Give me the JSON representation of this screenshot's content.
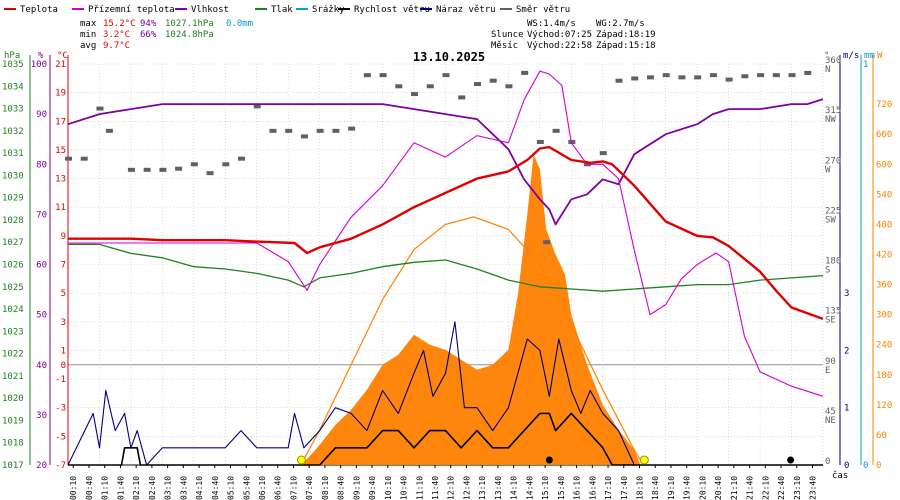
{
  "legend": [
    {
      "label": "Teplota",
      "color": "#e00000"
    },
    {
      "label": "Přízemní teplota",
      "color": "#d000d0"
    },
    {
      "label": "Vlhkost",
      "color": "#8000a0"
    },
    {
      "label": "Tlak",
      "color": "#208020"
    },
    {
      "label": "Srážky",
      "color": "#00a0d0"
    },
    {
      "label": "Rychlost větru",
      "color": "#000000"
    },
    {
      "label": "Náraz větru",
      "color": "#000080"
    },
    {
      "label": "Směr větru",
      "color": "#606060"
    }
  ],
  "stats": {
    "max": {
      "label": "max",
      "temp": "15.2°C",
      "hum": "94%",
      "press": "1027.1hPa",
      "rain": "0.0mm"
    },
    "min": {
      "label": "min",
      "temp": "3.2°C",
      "hum": "66%",
      "press": "1024.8hPa"
    },
    "avg": {
      "label": "avg",
      "temp": "9.7°C"
    }
  },
  "wind_info": {
    "ws": "WS:1.4m/s",
    "wg": "WG:2.7m/s"
  },
  "sun_info": {
    "label": "Slunce",
    "rise": "Východ:07:25",
    "set": "Západ:18:19"
  },
  "moon_info": {
    "label": "Měsíc",
    "rise": "Východ:22:58",
    "set": "Západ:15:18"
  },
  "date": "13.10.2025",
  "colors": {
    "temp": "#e00000",
    "ground": "#d000d0",
    "hum": "#8000a0",
    "press": "#208020",
    "rain": "#00a0d0",
    "speed": "#000000",
    "gust": "#000080",
    "dir": "#606060",
    "solar": "#ff8000",
    "grid": "#c8c8c8"
  },
  "axis_units": {
    "hpa": "hPa",
    "pct": "%",
    "degc": "°C",
    "deg": "°",
    "ms": "m/s",
    "mm": "mm",
    "w": "W"
  },
  "axis_xlabel": "čas",
  "chart_data": {
    "type": "line",
    "title": "13.10.2025",
    "x_unit": "hour of day",
    "xlim": [
      0,
      24
    ],
    "x_ticks": [
      "00:10",
      "00:40",
      "01:10",
      "01:40",
      "02:10",
      "02:40",
      "03:10",
      "03:40",
      "04:10",
      "04:40",
      "05:10",
      "05:40",
      "06:10",
      "06:40",
      "07:10",
      "07:40",
      "08:10",
      "08:40",
      "09:10",
      "09:40",
      "10:10",
      "10:40",
      "11:10",
      "11:40",
      "12:10",
      "12:40",
      "13:10",
      "13:40",
      "14:10",
      "14:40",
      "15:10",
      "15:40",
      "16:10",
      "16:40",
      "17:10",
      "17:40",
      "18:10",
      "18:40",
      "19:10",
      "19:40",
      "20:10",
      "20:40",
      "21:10",
      "21:40",
      "22:10",
      "22:40",
      "23:10",
      "23:40"
    ],
    "axes": {
      "pressure": {
        "label": "hPa",
        "ylim": [
          1017,
          1035
        ],
        "ticks": [
          "1035",
          "1034",
          "1033",
          "1032",
          "1031",
          "1030",
          "1029",
          "1028",
          "1027",
          "1026",
          "1025",
          "1024",
          "1023",
          "1022",
          "1021",
          "1020",
          "1019",
          "1018",
          "1017"
        ]
      },
      "humidity": {
        "label": "%",
        "ylim": [
          20,
          100
        ],
        "ticks": [
          "100",
          "90",
          "80",
          "70",
          "60",
          "50",
          "40",
          "30",
          "20"
        ]
      },
      "temperature": {
        "label": "°C",
        "ylim": [
          -7,
          21
        ],
        "ticks": [
          "21",
          "19",
          "17",
          "15",
          "13",
          "11",
          "9",
          "7",
          "5",
          "3",
          "1",
          "-1",
          "-3",
          "-5",
          "-7"
        ]
      },
      "wind_direction": {
        "label": "°",
        "ylim": [
          0,
          360
        ],
        "ticks": [
          {
            "v": 0,
            "t": "0"
          },
          {
            "v": 45,
            "t": "45"
          },
          {
            "v": 90,
            "t": "90"
          },
          {
            "v": 135,
            "t": "135"
          },
          {
            "v": 180,
            "t": "180"
          },
          {
            "v": 225,
            "t": "225"
          },
          {
            "v": 270,
            "t": "270"
          },
          {
            "v": 315,
            "t": "315"
          },
          {
            "v": 360,
            "t": "360"
          }
        ],
        "compass": [
          {
            "v": 45,
            "t": "NE"
          },
          {
            "v": 90,
            "t": "E"
          },
          {
            "v": 135,
            "t": "SE"
          },
          {
            "v": 180,
            "t": "S"
          },
          {
            "v": 225,
            "t": "SW"
          },
          {
            "v": 270,
            "t": "W"
          },
          {
            "v": 315,
            "t": "NW"
          },
          {
            "v": 360,
            "t": "N"
          }
        ]
      },
      "wind_speed": {
        "label": "m/s",
        "ylim": [
          0,
          7
        ],
        "ticks": [
          "0",
          "1",
          "2",
          "3"
        ]
      },
      "rain": {
        "label": "mm",
        "ylim": [
          0,
          1
        ],
        "ticks": [
          "0",
          "1"
        ]
      },
      "solar": {
        "label": "W",
        "ylim": [
          0,
          800
        ],
        "ticks": [
          "0",
          "60",
          "120",
          "180",
          "240",
          "300",
          "360",
          "420",
          "480",
          "540",
          "600",
          "660",
          "720"
        ]
      }
    },
    "series": [
      {
        "name": "Teplota",
        "axis": "temperature",
        "x": [
          0,
          1,
          2,
          3,
          4,
          5,
          6,
          7.2,
          7.6,
          8,
          9,
          10,
          11,
          12,
          13,
          14,
          14.6,
          15,
          15.3,
          16,
          16.6,
          17,
          17.3,
          18,
          19,
          20,
          20.5,
          21,
          22,
          22.5,
          23,
          24
        ],
        "values": [
          8.8,
          8.8,
          8.8,
          8.7,
          8.7,
          8.7,
          8.6,
          8.5,
          7.8,
          8.2,
          8.8,
          9.8,
          11.0,
          12.0,
          13.0,
          13.5,
          14.3,
          15.1,
          15.2,
          14.3,
          14.1,
          14.2,
          14.0,
          12.5,
          10.0,
          9.0,
          8.9,
          8.3,
          6.5,
          5.2,
          4.0,
          3.2
        ]
      },
      {
        "name": "Přízemní teplota",
        "axis": "temperature",
        "x": [
          0,
          6,
          7,
          7.6,
          8,
          9,
          10,
          11,
          12,
          13,
          14,
          14.5,
          15,
          15.3,
          15.7,
          16,
          16.5,
          17,
          17.5,
          18,
          18.5,
          19,
          19.5,
          20,
          20.6,
          21,
          21.5,
          22,
          23,
          24
        ],
        "values": [
          8.5,
          8.5,
          7.2,
          5.2,
          7.0,
          10.3,
          12.5,
          15.5,
          14.5,
          16.0,
          15.5,
          18.5,
          20.5,
          20.3,
          19.5,
          15.5,
          14.0,
          14.0,
          13.0,
          8.0,
          3.5,
          4.2,
          6.0,
          7.0,
          7.8,
          7.2,
          2.0,
          -0.5,
          -1.5,
          -2.2
        ]
      },
      {
        "name": "Vlhkost",
        "axis": "humidity",
        "x": [
          0,
          1,
          3,
          6,
          7,
          8,
          10,
          12,
          13,
          14,
          14.5,
          15,
          15.3,
          15.5,
          16,
          16.5,
          17,
          17.5,
          18,
          19,
          20,
          20.5,
          21,
          22,
          23,
          23.5,
          24
        ],
        "values": [
          88,
          90,
          92,
          92,
          92,
          92,
          92,
          90,
          89,
          83,
          77,
          73,
          71,
          68,
          73,
          74,
          77,
          76,
          82,
          86,
          88,
          90,
          91,
          91,
          92,
          92,
          93
        ]
      },
      {
        "name": "Tlak",
        "axis": "pressure",
        "x": [
          0,
          1,
          2,
          3,
          4,
          5,
          6,
          7,
          7.5,
          8,
          9,
          10,
          11,
          12,
          13,
          14,
          15,
          16,
          17,
          18,
          19,
          20,
          21,
          22,
          23,
          24
        ],
        "values": [
          1026.9,
          1026.9,
          1026.5,
          1026.3,
          1025.9,
          1025.8,
          1025.6,
          1025.3,
          1025.0,
          1025.4,
          1025.6,
          1025.9,
          1026.1,
          1026.2,
          1025.8,
          1025.3,
          1025.0,
          1024.9,
          1024.8,
          1024.9,
          1025.0,
          1025.1,
          1025.1,
          1025.3,
          1025.4,
          1025.5
        ]
      },
      {
        "name": "Rychlost větru",
        "axis": "wind_speed",
        "x": [
          0,
          1.7,
          1.8,
          2.2,
          2.3,
          8,
          8.5,
          9,
          9.5,
          10,
          10.5,
          11,
          11.5,
          12,
          12.5,
          13,
          13.5,
          14,
          14.5,
          15,
          15.3,
          15.5,
          16,
          16.5,
          17,
          17.3,
          24
        ],
        "values": [
          0,
          0,
          0.3,
          0.3,
          0,
          0,
          0.3,
          0.3,
          0.3,
          0.6,
          0.6,
          0.3,
          0.6,
          0.6,
          0.3,
          0.6,
          0.3,
          0.3,
          0.6,
          0.9,
          0.9,
          0.6,
          0.9,
          0.6,
          0.3,
          0,
          0
        ]
      },
      {
        "name": "Náraz větru",
        "axis": "wind_speed",
        "x": [
          0,
          0.8,
          1,
          1.2,
          1.5,
          1.8,
          2,
          2.2,
          2.5,
          3,
          4,
          5,
          5.5,
          6,
          6.5,
          7,
          7.2,
          7.5,
          8,
          8.5,
          9,
          9.5,
          10,
          10.5,
          11,
          11.3,
          11.6,
          12,
          12.3,
          12.6,
          13,
          13.5,
          14,
          14.3,
          14.6,
          15,
          15.3,
          15.6,
          16,
          16.3,
          16.6,
          17,
          17.5,
          18,
          24
        ],
        "values": [
          0,
          0.9,
          0.3,
          1.3,
          0.6,
          0.9,
          0.3,
          0.6,
          0,
          0.3,
          0.3,
          0.3,
          0.6,
          0.3,
          0.3,
          0.3,
          0.9,
          0.3,
          0.6,
          1.0,
          0.9,
          0.6,
          1.3,
          0.9,
          1.6,
          2.0,
          1.2,
          1.6,
          2.5,
          1.0,
          1.0,
          0.6,
          1.0,
          1.6,
          2.2,
          2.0,
          1.2,
          2.2,
          1.3,
          0.9,
          1.3,
          0.9,
          0.6,
          0,
          0
        ]
      },
      {
        "name": "Solární záření",
        "axis": "solar",
        "x": [
          7.5,
          8,
          8.5,
          9,
          9.5,
          10,
          10.5,
          11,
          11.5,
          12,
          12.5,
          13,
          13.5,
          14,
          14.3,
          14.6,
          14.8,
          15,
          15.2,
          15.5,
          15.8,
          16,
          16.5,
          17,
          17.5,
          18,
          18.2
        ],
        "values": [
          5,
          40,
          80,
          110,
          150,
          200,
          220,
          260,
          240,
          230,
          210,
          190,
          200,
          230,
          340,
          500,
          620,
          590,
          470,
          420,
          380,
          300,
          200,
          120,
          70,
          30,
          0
        ]
      },
      {
        "name": "Sluneční výška",
        "axis": "solar",
        "x": [
          7.4,
          8,
          9,
          10,
          11,
          12,
          12.9,
          14,
          15,
          16,
          17,
          18,
          18.3
        ],
        "values": [
          0,
          70,
          200,
          330,
          430,
          480,
          495,
          470,
          400,
          280,
          150,
          30,
          0
        ]
      },
      {
        "name": "Směr větru",
        "axis": "wind_direction",
        "type": "scatter",
        "x": [
          0,
          0.5,
          1,
          1.3,
          2,
          2.5,
          3,
          3.5,
          4,
          4.5,
          5,
          5.5,
          6,
          6.5,
          7,
          7.5,
          8,
          8.5,
          9,
          9.5,
          10,
          10.5,
          11,
          11.5,
          12,
          12.5,
          13,
          13.5,
          14,
          14.5,
          15,
          15.2,
          15.5,
          16,
          16.5,
          17,
          17.5,
          18,
          18.5,
          19,
          19.5,
          20,
          20.5,
          21,
          21.5,
          22,
          22.5,
          23,
          23.5
        ],
        "values": [
          275,
          275,
          320,
          300,
          265,
          265,
          265,
          266,
          270,
          262,
          270,
          275,
          322,
          300,
          300,
          295,
          300,
          300,
          302,
          350,
          350,
          340,
          333,
          340,
          350,
          330,
          342,
          345,
          340,
          352,
          290,
          200,
          300,
          290,
          270,
          280,
          345,
          347,
          348,
          350,
          348,
          348,
          350,
          346,
          349,
          350,
          350,
          350,
          352
        ]
      }
    ],
    "markers": [
      {
        "name": "sunrise",
        "x": 7.42,
        "label": "Východ:07:25"
      },
      {
        "name": "sunset",
        "x": 18.32,
        "label": "Západ:18:19"
      },
      {
        "name": "moonrise",
        "x": 22.97,
        "label": "Východ:22:58"
      },
      {
        "name": "moonset",
        "x": 15.3,
        "label": "Západ:15:18"
      }
    ]
  }
}
